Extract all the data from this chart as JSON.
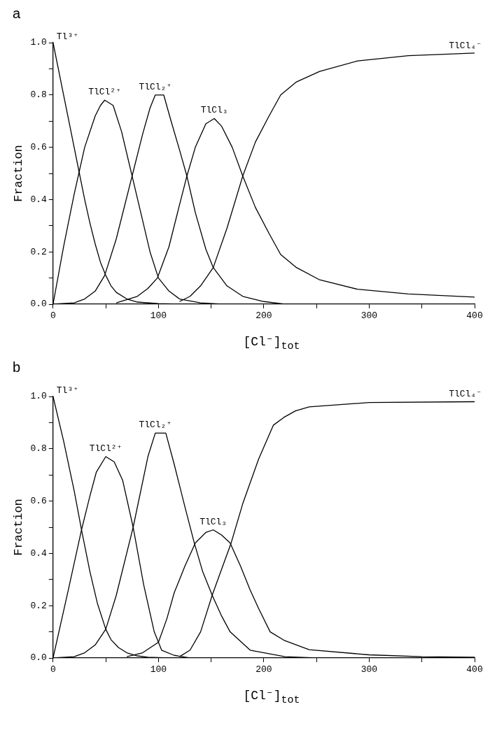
{
  "chart_data": [
    {
      "type": "line",
      "title": "a",
      "xlabel": "[Cl⁻]$_{tot}$",
      "ylabel": "Fraction",
      "xlim": [
        0,
        400
      ],
      "ylim": [
        0,
        1
      ],
      "xticks": [
        0,
        {
          "value": 50,
          "label": null
        },
        100,
        {
          "value": 150,
          "label": null
        },
        200,
        {
          "value": 250,
          "label": null
        },
        300,
        {
          "value": 350,
          "label": null
        },
        400
      ],
      "yticks": [
        {
          "value": 0,
          "label": "0.0"
        },
        {
          "value": 0.1,
          "label": null
        },
        {
          "value": 0.2,
          "label": "0.2"
        },
        {
          "value": 0.3,
          "label": null
        },
        {
          "value": 0.4,
          "label": "0.4"
        },
        {
          "value": 0.5,
          "label": null
        },
        {
          "value": 0.6,
          "label": "0.6"
        },
        {
          "value": 0.7,
          "label": null
        },
        {
          "value": 0.8,
          "label": "0.8"
        },
        {
          "value": 0.9,
          "label": null
        },
        {
          "value": 1,
          "label": "1.0"
        }
      ],
      "grid": false,
      "legend": false,
      "marker": "none",
      "line_style": "solid",
      "series": [
        {
          "name": "Tl³⁺",
          "color": "#000000",
          "x": [
            0,
            5,
            10,
            15,
            20,
            25,
            30,
            35,
            40,
            45,
            50,
            55,
            60,
            70,
            80,
            100,
            120
          ],
          "values": [
            1.0,
            0.9,
            0.8,
            0.7,
            0.6,
            0.5,
            0.4,
            0.31,
            0.23,
            0.16,
            0.11,
            0.07,
            0.045,
            0.02,
            0.008,
            0.002,
            0
          ]
        },
        {
          "name": "TlCl²⁺",
          "color": "#000000",
          "x": [
            0,
            10,
            20,
            30,
            40,
            45,
            49,
            57,
            65,
            75,
            85,
            92,
            100,
            110,
            120,
            140,
            160
          ],
          "values": [
            0,
            0.22,
            0.42,
            0.6,
            0.72,
            0.76,
            0.78,
            0.76,
            0.66,
            0.49,
            0.32,
            0.2,
            0.1,
            0.05,
            0.02,
            0.005,
            0
          ]
        },
        {
          "name": "TlCl₂⁺",
          "color": "#000000",
          "x": [
            0,
            20,
            30,
            40,
            49,
            60,
            75,
            85,
            92,
            97,
            105,
            112,
            120,
            127,
            135,
            145,
            152,
            165,
            180,
            200,
            220
          ],
          "values": [
            0,
            0.005,
            0.02,
            0.05,
            0.11,
            0.25,
            0.49,
            0.65,
            0.75,
            0.8,
            0.8,
            0.7,
            0.59,
            0.49,
            0.35,
            0.21,
            0.14,
            0.07,
            0.03,
            0.01,
            0
          ]
        },
        {
          "name": "TlCl₃",
          "color": "#000000",
          "x": [
            60,
            80,
            90,
            99,
            110,
            120,
            127,
            135,
            145,
            153,
            160,
            170,
            180,
            192,
            205,
            216,
            231,
            253,
            289,
            337,
            400
          ],
          "values": [
            0.005,
            0.03,
            0.06,
            0.1,
            0.22,
            0.38,
            0.49,
            0.6,
            0.69,
            0.71,
            0.68,
            0.6,
            0.49,
            0.37,
            0.27,
            0.19,
            0.14,
            0.093,
            0.057,
            0.039,
            0.027
          ]
        },
        {
          "name": "TlCl₄⁻",
          "color": "#000000",
          "x": [
            120,
            130,
            140,
            152,
            165,
            180,
            192,
            205,
            216,
            231,
            253,
            289,
            337,
            400
          ],
          "values": [
            0.01,
            0.03,
            0.07,
            0.14,
            0.29,
            0.49,
            0.62,
            0.72,
            0.8,
            0.85,
            0.89,
            0.93,
            0.95,
            0.96
          ]
        }
      ]
    },
    {
      "type": "line",
      "title": "b",
      "xlabel": "[Cl⁻]$_{tot}$",
      "ylabel": "Fraction",
      "xlim": [
        0,
        400
      ],
      "ylim": [
        0,
        1
      ],
      "xticks": [
        0,
        {
          "value": 50,
          "label": null
        },
        100,
        {
          "value": 150,
          "label": null
        },
        200,
        {
          "value": 250,
          "label": null
        },
        300,
        {
          "value": 350,
          "label": null
        },
        400
      ],
      "yticks": [
        {
          "value": 0,
          "label": "0.0"
        },
        {
          "value": 0.1,
          "label": null
        },
        {
          "value": 0.2,
          "label": "0.2"
        },
        {
          "value": 0.3,
          "label": null
        },
        {
          "value": 0.4,
          "label": "0.4"
        },
        {
          "value": 0.5,
          "label": null
        },
        {
          "value": 0.6,
          "label": "0.6"
        },
        {
          "value": 0.7,
          "label": null
        },
        {
          "value": 0.8,
          "label": "0.8"
        },
        {
          "value": 0.9,
          "label": null
        },
        {
          "value": 1,
          "label": "1.0"
        }
      ],
      "grid": false,
      "legend": false,
      "marker": "none",
      "line_style": "solid",
      "series": [
        {
          "name": "Tl³⁺",
          "color": "#000000",
          "x": [
            0,
            10,
            20,
            27,
            35,
            42,
            50,
            55,
            62,
            70,
            80,
            90,
            110
          ],
          "values": [
            1.0,
            0.83,
            0.64,
            0.49,
            0.33,
            0.21,
            0.11,
            0.07,
            0.04,
            0.02,
            0.008,
            0.003,
            0
          ]
        },
        {
          "name": "TlCl²⁺",
          "color": "#000000",
          "x": [
            0,
            15,
            27,
            35,
            41,
            50,
            58,
            66,
            76,
            86,
            96,
            103,
            115,
            130
          ],
          "values": [
            0,
            0.27,
            0.49,
            0.62,
            0.71,
            0.77,
            0.75,
            0.68,
            0.5,
            0.28,
            0.1,
            0.03,
            0.01,
            0
          ]
        },
        {
          "name": "TlCl₂⁺",
          "color": "#000000",
          "x": [
            0,
            20,
            30,
            40,
            50,
            60,
            76,
            90,
            97,
            107,
            115,
            125,
            134,
            142,
            151,
            160,
            168,
            187,
            220,
            250
          ],
          "values": [
            0,
            0.005,
            0.02,
            0.05,
            0.11,
            0.24,
            0.5,
            0.77,
            0.86,
            0.86,
            0.74,
            0.58,
            0.44,
            0.33,
            0.24,
            0.16,
            0.1,
            0.03,
            0.005,
            0
          ]
        },
        {
          "name": "TlCl₃",
          "color": "#000000",
          "x": [
            70,
            85,
            100,
            108,
            115,
            125,
            135,
            145,
            152,
            160,
            168,
            178,
            187,
            195,
            206,
            219,
            243,
            300,
            350,
            400
          ],
          "values": [
            0.005,
            0.02,
            0.06,
            0.15,
            0.25,
            0.35,
            0.44,
            0.48,
            0.49,
            0.47,
            0.44,
            0.35,
            0.26,
            0.19,
            0.1,
            0.068,
            0.032,
            0.012,
            0.005,
            0.003
          ]
        },
        {
          "name": "TlCl₄⁻",
          "color": "#000000",
          "x": [
            120,
            130,
            140,
            151,
            160,
            169,
            180,
            195,
            209,
            219,
            230,
            243,
            300,
            400
          ],
          "values": [
            0.005,
            0.03,
            0.1,
            0.24,
            0.34,
            0.44,
            0.59,
            0.76,
            0.89,
            0.92,
            0.945,
            0.96,
            0.977,
            0.98
          ]
        }
      ]
    }
  ]
}
